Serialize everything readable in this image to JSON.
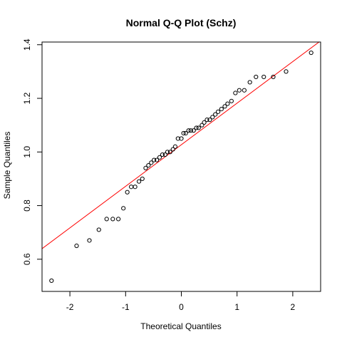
{
  "chart_data": {
    "type": "scatter",
    "title": "Normal Q-Q Plot (Schz)",
    "xlabel": "Theoretical Quantiles",
    "ylabel": "Sample Quantiles",
    "xlim": [
      -2.5,
      2.5
    ],
    "ylim": [
      0.48,
      1.41
    ],
    "xticks": [
      -2,
      -1,
      0,
      1,
      2
    ],
    "xtick_labels": [
      "-2",
      "-1",
      "0",
      "1",
      "2"
    ],
    "yticks": [
      0.6,
      0.8,
      1.0,
      1.2,
      1.4
    ],
    "ytick_labels": [
      "0.6",
      "0.8",
      "1.0",
      "1.2",
      "1.4"
    ],
    "grid": false,
    "series": [
      {
        "marker": "open-circle",
        "color": "#000000",
        "x": [
          -2.33,
          -1.88,
          -1.65,
          -1.48,
          -1.34,
          -1.23,
          -1.13,
          -1.04,
          -0.97,
          -0.9,
          -0.83,
          -0.76,
          -0.7,
          -0.64,
          -0.59,
          -0.54,
          -0.49,
          -0.44,
          -0.39,
          -0.34,
          -0.29,
          -0.25,
          -0.2,
          -0.15,
          -0.11,
          -0.06,
          0.0,
          0.04,
          0.08,
          0.13,
          0.17,
          0.22,
          0.27,
          0.31,
          0.37,
          0.41,
          0.46,
          0.51,
          0.56,
          0.61,
          0.66,
          0.72,
          0.78,
          0.83,
          0.9,
          0.97,
          1.04,
          1.13,
          1.23,
          1.34,
          1.48,
          1.65,
          1.88,
          2.33
        ],
        "y": [
          0.52,
          0.65,
          0.67,
          0.71,
          0.75,
          0.75,
          0.75,
          0.79,
          0.85,
          0.87,
          0.87,
          0.89,
          0.9,
          0.94,
          0.95,
          0.96,
          0.97,
          0.97,
          0.98,
          0.99,
          0.99,
          1.0,
          1.0,
          1.01,
          1.02,
          1.05,
          1.05,
          1.07,
          1.07,
          1.08,
          1.08,
          1.08,
          1.09,
          1.09,
          1.1,
          1.11,
          1.12,
          1.12,
          1.13,
          1.14,
          1.15,
          1.16,
          1.17,
          1.18,
          1.19,
          1.22,
          1.23,
          1.23,
          1.26,
          1.28,
          1.28,
          1.28,
          1.3,
          1.37
        ]
      }
    ],
    "reference_line": {
      "intercept": 1.027,
      "slope": 0.155,
      "color": "#ff0000"
    }
  }
}
